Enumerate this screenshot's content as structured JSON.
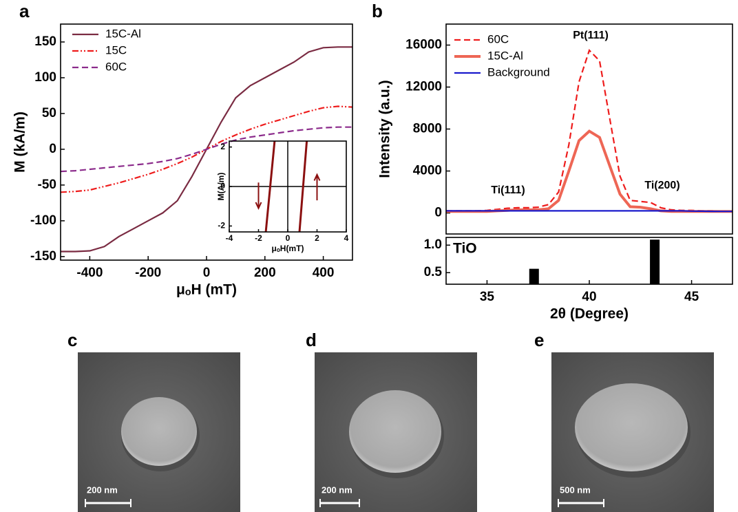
{
  "panel_labels": [
    "a",
    "b",
    "c",
    "d",
    "e"
  ],
  "chart_data": [
    {
      "type": "line",
      "x_label": "μₒH (mT)",
      "y_label": "M (kA/m)",
      "x": [
        -500,
        -450,
        -400,
        -350,
        -300,
        -250,
        -200,
        -150,
        -100,
        -50,
        0,
        50,
        100,
        150,
        200,
        250,
        300,
        350,
        400,
        450,
        500
      ],
      "xlim": [
        -500,
        500
      ],
      "xticks": [
        -400,
        -200,
        0,
        200,
        400
      ],
      "ylim": [
        -155,
        175
      ],
      "yticks": [
        -150,
        -100,
        -50,
        0,
        50,
        100,
        150
      ],
      "legend": "upper left",
      "series": [
        {
          "name": "15C-Al",
          "color": "#7a2b42",
          "line_style": "solid",
          "values": [
            -143,
            -143,
            -142,
            -136,
            -122,
            -111,
            -100,
            -89,
            -72,
            -38,
            0,
            38,
            72,
            89,
            100,
            111,
            122,
            136,
            142,
            143,
            143
          ]
        },
        {
          "name": "15C",
          "color": "#ee1c1c",
          "line_style": "dashdotdot",
          "values": [
            -60,
            -59,
            -57,
            -52,
            -47,
            -41,
            -35,
            -28,
            -20,
            -11,
            0,
            11,
            20,
            28,
            35,
            41,
            47,
            53,
            58,
            60,
            59
          ]
        },
        {
          "name": "60C",
          "color": "#8b2a8b",
          "line_style": "dashed",
          "values": [
            -31,
            -30,
            -28,
            -26,
            -24,
            -22,
            -20,
            -17,
            -13,
            -7,
            0,
            7,
            13,
            17,
            20,
            23,
            26,
            28,
            30,
            31,
            31
          ]
        }
      ]
    },
    {
      "type": "line",
      "x_label": "μₒH(mT)",
      "y_label": "M(A/m)",
      "xlim": [
        -4,
        4
      ],
      "xticks": [
        -4,
        -2,
        0,
        2,
        4
      ],
      "ylim": [
        -2.3,
        2.3
      ],
      "yticks": [
        -2,
        0,
        2
      ],
      "series": [
        {
          "color": "#8b1010",
          "line_style": "solid",
          "x": [
            -1.5,
            -0.9
          ],
          "values": [
            -2.3,
            2.3
          ]
        },
        {
          "color": "#8b1010",
          "line_style": "solid",
          "x": [
            0.8,
            1.3
          ],
          "values": [
            -2.3,
            2.3
          ]
        }
      ]
    },
    {
      "type": "line",
      "y_label": "Intensity (a.u.)",
      "annotations": [
        "Pt(111)",
        "Ti(111)",
        "Ti(200)"
      ],
      "x": [
        33,
        33.5,
        34,
        34.5,
        35,
        35.5,
        36,
        36.5,
        37,
        37.5,
        38,
        38.5,
        39,
        39.5,
        40,
        40.5,
        41,
        41.5,
        42,
        42.5,
        43,
        43.5,
        44,
        44.5,
        45,
        45.5,
        46,
        46.5,
        47
      ],
      "xlim": [
        33,
        47
      ],
      "ylim": [
        -2000,
        18000
      ],
      "yticks": [
        0,
        4000,
        8000,
        12000,
        16000
      ],
      "legend": "upper left",
      "series": [
        {
          "name": "60C",
          "color": "#ee1c1c",
          "line_style": "dashed",
          "values": [
            200,
            200,
            200,
            200,
            250,
            350,
            450,
            500,
            500,
            550,
            800,
            2000,
            6500,
            12500,
            15500,
            14500,
            9000,
            3500,
            1200,
            1100,
            1000,
            500,
            300,
            250,
            250,
            200,
            200,
            150,
            150
          ]
        },
        {
          "name": "15C-Al",
          "color": "#ee6655",
          "line_style": "thick",
          "values": [
            150,
            150,
            150,
            150,
            150,
            200,
            250,
            300,
            300,
            300,
            400,
            1200,
            4000,
            6900,
            7800,
            7200,
            4500,
            1800,
            600,
            550,
            400,
            200,
            150,
            150,
            150,
            150,
            150,
            150,
            150
          ]
        },
        {
          "name": "Background",
          "color": "#1a1acc",
          "line_style": "solid",
          "values": [
            200,
            200,
            200,
            200,
            200,
            200,
            200,
            200,
            200,
            200,
            200,
            200,
            200,
            200,
            200,
            200,
            200,
            200,
            200,
            200,
            200,
            200,
            200,
            200,
            180,
            170,
            160,
            150,
            150
          ]
        }
      ]
    },
    {
      "type": "bar",
      "x_label": "2θ (Degree)",
      "annotations": [
        "TiO"
      ],
      "x": [
        37.3,
        43.2
      ],
      "values": [
        0.57,
        1.1
      ],
      "color": "#000000",
      "xlim": [
        33,
        47
      ],
      "xticks": [
        35,
        40,
        45
      ],
      "ylim": [
        0.29,
        1.14
      ],
      "yticks": [
        0.5,
        {
          "value": 1,
          "label": "1.0"
        }
      ]
    }
  ],
  "images": [
    {
      "scale_bar": "200 nm"
    },
    {
      "scale_bar": "200 nm"
    },
    {
      "scale_bar": "500 nm"
    }
  ]
}
